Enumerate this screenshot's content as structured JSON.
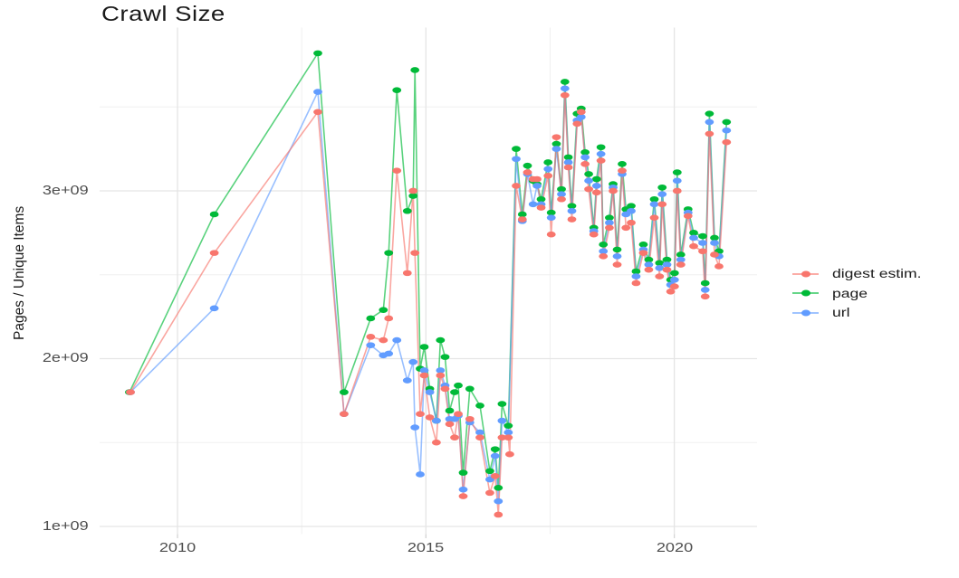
{
  "title": "Crawl Size",
  "y_axis_title": "Pages / Unique Items",
  "legend": {
    "items": [
      {
        "label": "digest estim.",
        "series": "digest",
        "color": "#F8766D"
      },
      {
        "label": "page",
        "series": "page",
        "color": "#00BA38"
      },
      {
        "label": "url",
        "series": "url",
        "color": "#619CFF"
      }
    ]
  },
  "axes": {
    "x": {
      "lim": [
        2008.432,
        2021.666
      ],
      "major_ticks": [
        2010,
        2015,
        2020
      ],
      "tick_labels": [
        "2010",
        "2015",
        "2020"
      ],
      "minor_ticks": [
        2012.5,
        2017.5
      ]
    },
    "y": {
      "unit": "1e9 pages / unique items",
      "lim": [
        0.954,
        3.973
      ],
      "major_ticks": [
        1,
        2,
        3
      ],
      "tick_labels": [
        "1e+09",
        "2e+09",
        "3e+09"
      ],
      "minor_ticks": [
        1.5,
        2.5,
        3.5
      ]
    }
  },
  "chart_data": {
    "type": "line",
    "title": "Crawl Size",
    "xlabel": "",
    "ylabel": "Pages / Unique Items",
    "x_unit": "decimal year of monthly crawl",
    "y_unit": "billions (value x 1e9)",
    "legend_position": "right",
    "grid": true,
    "series": [
      {
        "name": "digest estim.",
        "color": "#F8766D",
        "points": [
          [
            2009.052,
            1.8
          ],
          [
            2010.74,
            2.63
          ],
          [
            2012.825,
            3.47
          ],
          [
            2013.352,
            1.67
          ],
          [
            2013.888,
            2.13
          ],
          [
            2014.143,
            2.11
          ],
          [
            2014.251,
            2.24
          ],
          [
            2014.415,
            3.12
          ],
          [
            2014.626,
            2.51
          ],
          [
            2014.743,
            3.0
          ],
          [
            2014.779,
            2.63
          ],
          [
            2014.885,
            1.67
          ],
          [
            2014.967,
            1.9
          ],
          [
            2015.078,
            1.65
          ],
          [
            2015.211,
            1.5
          ],
          [
            2015.292,
            1.9
          ],
          [
            2015.386,
            1.82
          ],
          [
            2015.478,
            1.61
          ],
          [
            2015.578,
            1.53
          ],
          [
            2015.651,
            1.67
          ],
          [
            2015.751,
            1.18
          ],
          [
            2015.884,
            1.64
          ],
          [
            2016.088,
            1.53
          ],
          [
            2016.287,
            1.2
          ],
          [
            2016.394,
            1.3
          ],
          [
            2016.458,
            1.07
          ],
          [
            2016.533,
            1.53
          ],
          [
            2016.659,
            1.53
          ],
          [
            2016.688,
            1.43
          ],
          [
            2016.817,
            3.03
          ],
          [
            2016.941,
            2.83
          ],
          [
            2017.045,
            3.11
          ],
          [
            2017.158,
            3.07
          ],
          [
            2017.237,
            3.07
          ],
          [
            2017.319,
            2.9
          ],
          [
            2017.459,
            3.09
          ],
          [
            2017.523,
            2.74
          ],
          [
            2017.627,
            3.32
          ],
          [
            2017.729,
            2.95
          ],
          [
            2017.798,
            3.57
          ],
          [
            2017.867,
            3.14
          ],
          [
            2017.938,
            2.83
          ],
          [
            2018.044,
            3.4
          ],
          [
            2018.126,
            3.47
          ],
          [
            2018.205,
            3.16
          ],
          [
            2018.277,
            3.01
          ],
          [
            2018.38,
            2.74
          ],
          [
            2018.436,
            2.99
          ],
          [
            2018.524,
            3.18
          ],
          [
            2018.571,
            2.61
          ],
          [
            2018.693,
            2.78
          ],
          [
            2018.768,
            3.0
          ],
          [
            2018.85,
            2.56
          ],
          [
            2018.95,
            3.12
          ],
          [
            2019.027,
            2.78
          ],
          [
            2019.132,
            2.81
          ],
          [
            2019.231,
            2.45
          ],
          [
            2019.378,
            2.63
          ],
          [
            2019.486,
            2.53
          ],
          [
            2019.597,
            2.84
          ],
          [
            2019.703,
            2.49
          ],
          [
            2019.756,
            2.92
          ],
          [
            2019.852,
            2.53
          ],
          [
            2019.927,
            2.4
          ],
          [
            2020.004,
            2.43
          ],
          [
            2020.058,
            3.0
          ],
          [
            2020.131,
            2.56
          ],
          [
            2020.277,
            2.85
          ],
          [
            2020.39,
            2.67
          ],
          [
            2020.572,
            2.64
          ],
          [
            2020.622,
            2.37
          ],
          [
            2020.707,
            3.34
          ],
          [
            2020.809,
            2.62
          ],
          [
            2020.9,
            2.55
          ],
          [
            2021.052,
            3.29
          ]
        ]
      },
      {
        "name": "page",
        "color": "#00BA38",
        "points": [
          [
            2009.033,
            1.8
          ],
          [
            2010.74,
            2.86
          ],
          [
            2012.825,
            3.82
          ],
          [
            2013.352,
            1.8
          ],
          [
            2013.888,
            2.24
          ],
          [
            2014.143,
            2.29
          ],
          [
            2014.251,
            2.63
          ],
          [
            2014.415,
            3.6
          ],
          [
            2014.626,
            2.88
          ],
          [
            2014.743,
            2.97
          ],
          [
            2014.779,
            3.72
          ],
          [
            2014.885,
            1.94
          ],
          [
            2014.967,
            2.07
          ],
          [
            2015.078,
            1.82
          ],
          [
            2015.211,
            1.63
          ],
          [
            2015.292,
            2.11
          ],
          [
            2015.386,
            2.01
          ],
          [
            2015.478,
            1.69
          ],
          [
            2015.578,
            1.8
          ],
          [
            2015.651,
            1.84
          ],
          [
            2015.751,
            1.32
          ],
          [
            2015.884,
            1.82
          ],
          [
            2016.088,
            1.72
          ],
          [
            2016.287,
            1.33
          ],
          [
            2016.394,
            1.46
          ],
          [
            2016.458,
            1.23
          ],
          [
            2016.533,
            1.73
          ],
          [
            2016.659,
            1.6
          ],
          [
            2016.817,
            3.25
          ],
          [
            2016.941,
            2.86
          ],
          [
            2017.045,
            3.15
          ],
          [
            2017.158,
            3.06
          ],
          [
            2017.237,
            3.04
          ],
          [
            2017.319,
            2.95
          ],
          [
            2017.459,
            3.17
          ],
          [
            2017.523,
            2.87
          ],
          [
            2017.627,
            3.28
          ],
          [
            2017.729,
            3.01
          ],
          [
            2017.798,
            3.65
          ],
          [
            2017.867,
            3.2
          ],
          [
            2017.938,
            2.91
          ],
          [
            2018.044,
            3.46
          ],
          [
            2018.126,
            3.49
          ],
          [
            2018.205,
            3.23
          ],
          [
            2018.277,
            3.1
          ],
          [
            2018.38,
            2.78
          ],
          [
            2018.436,
            3.07
          ],
          [
            2018.524,
            3.26
          ],
          [
            2018.571,
            2.68
          ],
          [
            2018.693,
            2.84
          ],
          [
            2018.768,
            3.04
          ],
          [
            2018.85,
            2.65
          ],
          [
            2018.95,
            3.16
          ],
          [
            2019.027,
            2.89
          ],
          [
            2019.132,
            2.91
          ],
          [
            2019.231,
            2.52
          ],
          [
            2019.378,
            2.68
          ],
          [
            2019.486,
            2.59
          ],
          [
            2019.597,
            2.95
          ],
          [
            2019.703,
            2.57
          ],
          [
            2019.756,
            3.02
          ],
          [
            2019.852,
            2.59
          ],
          [
            2019.927,
            2.47
          ],
          [
            2020.004,
            2.51
          ],
          [
            2020.058,
            3.11
          ],
          [
            2020.131,
            2.62
          ],
          [
            2020.277,
            2.89
          ],
          [
            2020.39,
            2.75
          ],
          [
            2020.572,
            2.73
          ],
          [
            2020.622,
            2.45
          ],
          [
            2020.707,
            3.46
          ],
          [
            2020.809,
            2.72
          ],
          [
            2020.9,
            2.64
          ],
          [
            2021.052,
            3.41
          ]
        ]
      },
      {
        "name": "url",
        "color": "#619CFF",
        "points": [
          [
            2009.052,
            1.8
          ],
          [
            2010.74,
            2.3
          ],
          [
            2012.825,
            3.59
          ],
          [
            2013.352,
            1.67
          ],
          [
            2013.888,
            2.08
          ],
          [
            2014.143,
            2.02
          ],
          [
            2014.251,
            2.03
          ],
          [
            2014.415,
            2.11
          ],
          [
            2014.626,
            1.87
          ],
          [
            2014.743,
            1.98
          ],
          [
            2014.779,
            1.59
          ],
          [
            2014.885,
            1.31
          ],
          [
            2014.967,
            1.93
          ],
          [
            2015.078,
            1.8
          ],
          [
            2015.211,
            1.63
          ],
          [
            2015.292,
            1.93
          ],
          [
            2015.386,
            1.84
          ],
          [
            2015.478,
            1.64
          ],
          [
            2015.578,
            1.64
          ],
          [
            2015.651,
            1.66
          ],
          [
            2015.751,
            1.22
          ],
          [
            2015.884,
            1.62
          ],
          [
            2016.088,
            1.56
          ],
          [
            2016.287,
            1.28
          ],
          [
            2016.394,
            1.42
          ],
          [
            2016.458,
            1.15
          ],
          [
            2016.533,
            1.63
          ],
          [
            2016.659,
            1.56
          ],
          [
            2016.817,
            3.19
          ],
          [
            2016.941,
            2.82
          ],
          [
            2017.045,
            3.1
          ],
          [
            2017.158,
            2.92
          ],
          [
            2017.237,
            3.03
          ],
          [
            2017.319,
            2.92
          ],
          [
            2017.459,
            3.13
          ],
          [
            2017.523,
            2.84
          ],
          [
            2017.627,
            3.25
          ],
          [
            2017.729,
            2.98
          ],
          [
            2017.798,
            3.61
          ],
          [
            2017.867,
            3.17
          ],
          [
            2017.938,
            2.88
          ],
          [
            2018.044,
            3.42
          ],
          [
            2018.126,
            3.44
          ],
          [
            2018.205,
            3.2
          ],
          [
            2018.277,
            3.06
          ],
          [
            2018.38,
            2.76
          ],
          [
            2018.436,
            3.03
          ],
          [
            2018.524,
            3.22
          ],
          [
            2018.571,
            2.64
          ],
          [
            2018.693,
            2.81
          ],
          [
            2018.768,
            3.02
          ],
          [
            2018.85,
            2.61
          ],
          [
            2018.95,
            3.1
          ],
          [
            2019.027,
            2.86
          ],
          [
            2019.132,
            2.88
          ],
          [
            2019.231,
            2.49
          ],
          [
            2019.378,
            2.65
          ],
          [
            2019.486,
            2.56
          ],
          [
            2019.597,
            2.92
          ],
          [
            2019.703,
            2.54
          ],
          [
            2019.756,
            2.98
          ],
          [
            2019.852,
            2.56
          ],
          [
            2019.927,
            2.44
          ],
          [
            2020.004,
            2.47
          ],
          [
            2020.058,
            3.06
          ],
          [
            2020.131,
            2.59
          ],
          [
            2020.277,
            2.87
          ],
          [
            2020.39,
            2.72
          ],
          [
            2020.572,
            2.69
          ],
          [
            2020.622,
            2.41
          ],
          [
            2020.707,
            3.41
          ],
          [
            2020.809,
            2.69
          ],
          [
            2020.9,
            2.61
          ],
          [
            2021.052,
            3.36
          ]
        ]
      }
    ]
  },
  "style": {
    "background": "#FFFFFF",
    "grid_major_color": "#E5E5E5",
    "grid_minor_color": "#F0F0F0",
    "tick_label_color": "#4D4D4D",
    "title_color": "#1A1A1A",
    "axis_title_color": "#1A1A1A",
    "legend_text_color": "#1A1A1A"
  }
}
